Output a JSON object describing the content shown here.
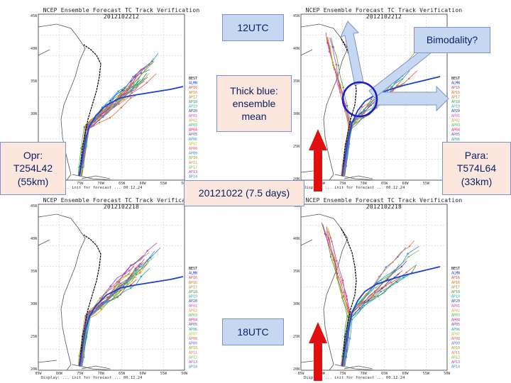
{
  "panels": [
    {
      "title": "NCEP Ensemble Forecast TC Track Verification 2012102212",
      "footer": "Display: ... init for forecast ... 00.12.24"
    },
    {
      "title": "NCEP Ensemble Forecast TC Track Verification 2012102212",
      "footer": "Display: ... init for forecast ... 00.12.24"
    },
    {
      "title": "NCEP Ensemble Forecast TC Track Verification 2012102218",
      "footer": "Display: ... init for forecast ... 00.12.24"
    },
    {
      "title": "NCEP Ensemble Forecast TC Track Verification 2012102218",
      "footer": "Display: ... init for forecast ... 00.12.24"
    }
  ],
  "legend": [
    "BEST",
    "ALMN",
    "AP16",
    "AP16",
    "AP17",
    "AP18",
    "AP19",
    "AP20",
    "AP01",
    "AP02",
    "AP03",
    "AP04",
    "AP05",
    "AP06",
    "AP07",
    "AP08",
    "AP09",
    "AP10",
    "AP11",
    "AP12",
    "AP13",
    "AP14"
  ],
  "legend_colors": [
    "#000000",
    "#1f3fcf",
    "#e04040",
    "#e07020",
    "#c08020",
    "#40a040",
    "#20b0b0",
    "#2040c0",
    "#e040e0",
    "#e0a020",
    "#40c040",
    "#e02080",
    "#8040c0",
    "#20a0a0",
    "#c0c020",
    "#e06060",
    "#4080e0",
    "#a0a020",
    "#e08040",
    "#80c040",
    "#c040c0",
    "#2090e0"
  ],
  "callouts": {
    "top_time": "12UTC",
    "bimodality": "Bimodality?",
    "ensemble_mean": "Thick blue: ensemble mean",
    "opr": "Opr: T254L42 (55km)",
    "para": "Para: T574L64 (33km)",
    "init_date": "20121022 (7.5 days)",
    "bottom_time": "18UTC"
  },
  "colors": {
    "callout_blue": "#c6d7f2",
    "callout_pink": "#fbe7dd",
    "callout_text": "#0a1f66",
    "red_arrow": "#e01010",
    "circle": "#1a1ad0",
    "land": "#ffffff",
    "coast": "#555555"
  },
  "icons": {
    "up_arrow_1": "red-up-arrow",
    "up_arrow_2": "red-up-arrow",
    "circle": "blue-circle-marker",
    "arrow_up": "light-blue-block-arrow",
    "arrow_right": "light-blue-block-arrow"
  }
}
